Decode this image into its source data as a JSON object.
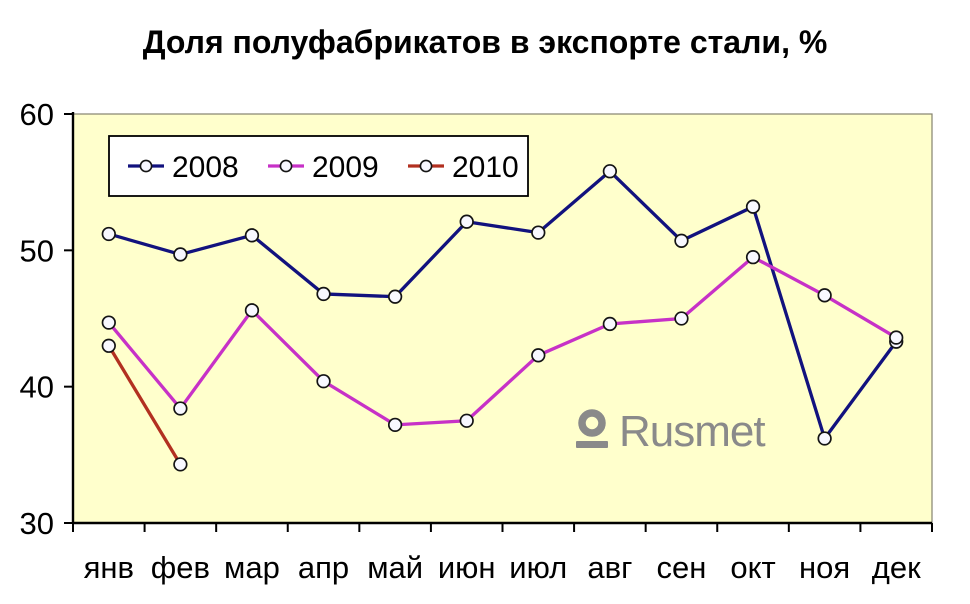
{
  "title": "Доля полуфабрикатов в экспорте стали, %",
  "watermark": {
    "text": "Rusmet",
    "color": "#8A8A8A"
  },
  "colors": {
    "page_bg": "#FFFFFF",
    "plot_bg": "#FFFFCC",
    "plot_border": "#84826E",
    "axis": "#000000",
    "text": "#000000",
    "marker_fill": "#F8F8FF",
    "marker_stroke": "#141414",
    "legend_bg": "#FFFFFF",
    "legend_border": "#000000"
  },
  "chart_data": {
    "type": "line",
    "title": "Доля полуфабрикатов в экспорте стали, %",
    "categories": [
      "янв",
      "фев",
      "мар",
      "апр",
      "май",
      "июн",
      "июл",
      "авг",
      "сен",
      "окт",
      "ноя",
      "дек"
    ],
    "series": [
      {
        "name": "2008",
        "color": "#12127E",
        "values": [
          51.2,
          49.7,
          51.1,
          46.8,
          46.6,
          52.1,
          51.3,
          55.8,
          50.7,
          53.2,
          36.2,
          43.3
        ]
      },
      {
        "name": "2009",
        "color": "#C731C7",
        "values": [
          44.7,
          38.4,
          45.6,
          40.4,
          37.2,
          37.5,
          42.3,
          44.6,
          45.0,
          49.5,
          46.7,
          43.6
        ]
      },
      {
        "name": "2010",
        "color": "#B23020",
        "values": [
          43.0,
          34.3
        ]
      }
    ],
    "xlabel": "",
    "ylabel": "",
    "ylim": [
      30,
      60
    ],
    "yticks": [
      30,
      40,
      50,
      60
    ],
    "grid": false,
    "legend_position": "top-left"
  }
}
